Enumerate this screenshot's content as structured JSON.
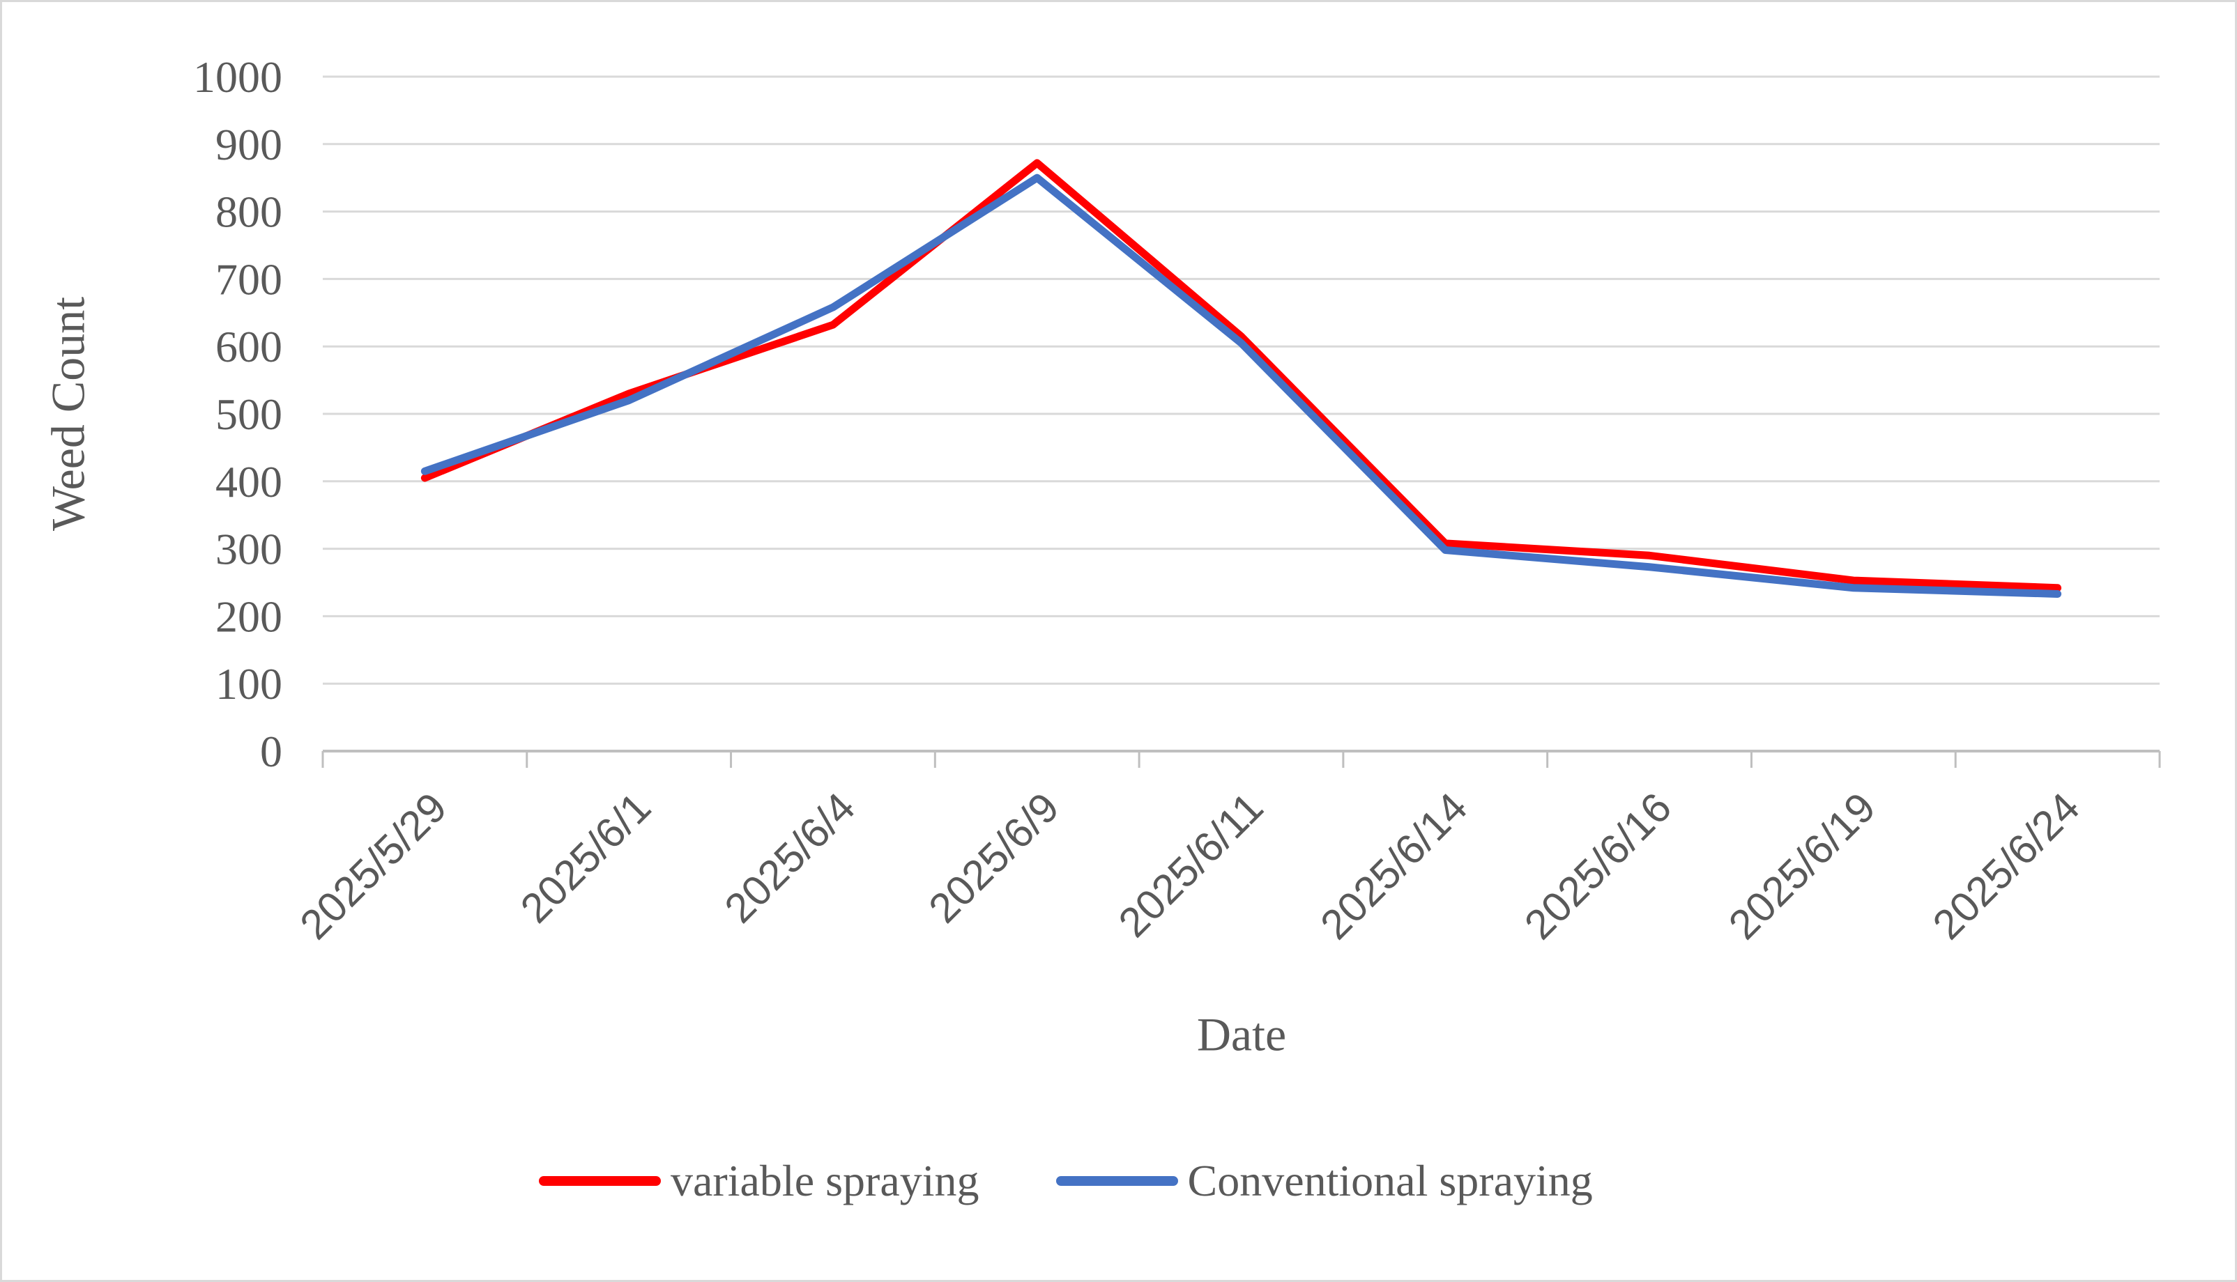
{
  "chart": {
    "background_color": "#FFFFFF",
    "border_color": "#D9D9D9",
    "gridline_color": "#D9D9D9",
    "axis_line_color": "#BFBFBF",
    "text_color": "#595959"
  },
  "chart_data": {
    "type": "line",
    "title": "",
    "xlabel": "Date",
    "ylabel": "Weed Count",
    "categories": [
      "2025/5/29",
      "2025/6/1",
      "2025/6/4",
      "2025/6/9",
      "2025/6/11",
      "2025/6/14",
      "2025/6/16",
      "2025/6/19",
      "2025/6/24"
    ],
    "series": [
      {
        "name": "variable spraying",
        "color": "#FF0000",
        "values": [
          405,
          530,
          632,
          872,
          615,
          308,
          290,
          253,
          242
        ]
      },
      {
        "name": "Conventional spraying",
        "color": "#4472C4",
        "values": [
          415,
          520,
          658,
          850,
          605,
          298,
          273,
          242,
          233
        ]
      }
    ],
    "ylim": [
      0,
      1000
    ],
    "ytick_step": 100,
    "ytick_labels": [
      "0",
      "100",
      "200",
      "300",
      "400",
      "500",
      "600",
      "700",
      "800",
      "900",
      "1000"
    ],
    "grid": "horizontal",
    "legend_position": "bottom",
    "x_tick_label_rotation_deg": 45
  }
}
